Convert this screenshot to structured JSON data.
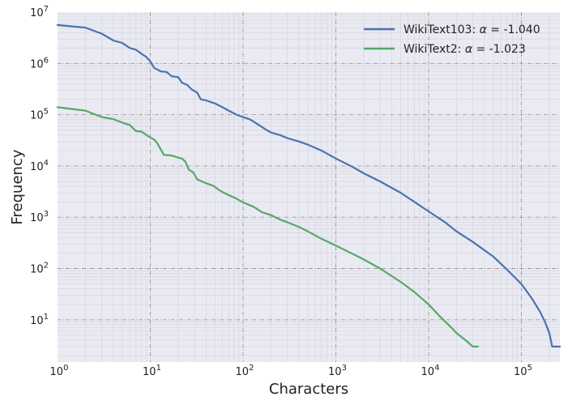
{
  "chart_data": {
    "type": "line",
    "xlabel": "Characters",
    "ylabel": "Frequency",
    "xscale": "log",
    "yscale": "log",
    "xlim": [
      1,
      260000
    ],
    "ylim": [
      1.5,
      10000000
    ],
    "grid": true,
    "legend_position": "top-right",
    "x_ticks": [
      {
        "value": 1,
        "base": "10",
        "exp": "0"
      },
      {
        "value": 10,
        "base": "10",
        "exp": "1"
      },
      {
        "value": 100,
        "base": "10",
        "exp": "2"
      },
      {
        "value": 1000,
        "base": "10",
        "exp": "3"
      },
      {
        "value": 10000,
        "base": "10",
        "exp": "4"
      },
      {
        "value": 100000,
        "base": "10",
        "exp": "5"
      }
    ],
    "y_ticks": [
      {
        "value": 10,
        "base": "10",
        "exp": "1"
      },
      {
        "value": 100,
        "base": "10",
        "exp": "2"
      },
      {
        "value": 1000,
        "base": "10",
        "exp": "3"
      },
      {
        "value": 10000,
        "base": "10",
        "exp": "4"
      },
      {
        "value": 100000,
        "base": "10",
        "exp": "5"
      },
      {
        "value": 1000000,
        "base": "10",
        "exp": "6"
      },
      {
        "value": 10000000,
        "base": "10",
        "exp": "7"
      }
    ],
    "series": [
      {
        "name": "WikiText103",
        "name_prefix": "WikiText103: ",
        "alpha_symbol": "α",
        "alpha_text": " = -1.040",
        "color": "#4c72b0",
        "points": [
          [
            1,
            5600000
          ],
          [
            2,
            5000000
          ],
          [
            3,
            3800000
          ],
          [
            4,
            2800000
          ],
          [
            5,
            2500000
          ],
          [
            6,
            2000000
          ],
          [
            7,
            1850000
          ],
          [
            8,
            1550000
          ],
          [
            9,
            1350000
          ],
          [
            10,
            1100000
          ],
          [
            11,
            820000
          ],
          [
            13,
            700000
          ],
          [
            15,
            680000
          ],
          [
            17,
            560000
          ],
          [
            20,
            540000
          ],
          [
            22,
            420000
          ],
          [
            25,
            380000
          ],
          [
            28,
            310000
          ],
          [
            32,
            270000
          ],
          [
            35,
            200000
          ],
          [
            40,
            190000
          ],
          [
            50,
            165000
          ],
          [
            60,
            140000
          ],
          [
            70,
            120000
          ],
          [
            85,
            100000
          ],
          [
            100,
            90000
          ],
          [
            120,
            80000
          ],
          [
            150,
            62000
          ],
          [
            180,
            50000
          ],
          [
            200,
            45000
          ],
          [
            250,
            40000
          ],
          [
            300,
            35000
          ],
          [
            400,
            30000
          ],
          [
            500,
            26000
          ],
          [
            700,
            20000
          ],
          [
            1000,
            14000
          ],
          [
            1500,
            9700
          ],
          [
            2000,
            7200
          ],
          [
            3000,
            5000
          ],
          [
            5000,
            3000
          ],
          [
            7000,
            2000
          ],
          [
            10000,
            1300
          ],
          [
            15000,
            800
          ],
          [
            20000,
            530
          ],
          [
            30000,
            330
          ],
          [
            50000,
            170
          ],
          [
            70000,
            95
          ],
          [
            100000,
            50
          ],
          [
            130000,
            26
          ],
          [
            160000,
            14
          ],
          [
            180000,
            9
          ],
          [
            200000,
            5.5
          ],
          [
            215000,
            3
          ],
          [
            260000,
            3
          ]
        ]
      },
      {
        "name": "WikiText2",
        "name_prefix": "WikiText2: ",
        "alpha_symbol": "α",
        "alpha_text": " = -1.023",
        "color": "#55a868",
        "points": [
          [
            1,
            140000
          ],
          [
            2,
            120000
          ],
          [
            3,
            90000
          ],
          [
            4,
            82000
          ],
          [
            5,
            70000
          ],
          [
            6,
            63000
          ],
          [
            7,
            48000
          ],
          [
            8,
            47000
          ],
          [
            10,
            36000
          ],
          [
            11,
            33000
          ],
          [
            12,
            27000
          ],
          [
            14,
            16500
          ],
          [
            17,
            16000
          ],
          [
            20,
            14500
          ],
          [
            22,
            14000
          ],
          [
            24,
            12000
          ],
          [
            26,
            8500
          ],
          [
            29,
            7500
          ],
          [
            32,
            5500
          ],
          [
            36,
            5000
          ],
          [
            40,
            4600
          ],
          [
            48,
            4100
          ],
          [
            55,
            3400
          ],
          [
            60,
            3100
          ],
          [
            70,
            2700
          ],
          [
            85,
            2300
          ],
          [
            100,
            1950
          ],
          [
            130,
            1600
          ],
          [
            160,
            1250
          ],
          [
            200,
            1100
          ],
          [
            250,
            900
          ],
          [
            300,
            800
          ],
          [
            400,
            650
          ],
          [
            500,
            530
          ],
          [
            700,
            380
          ],
          [
            1000,
            280
          ],
          [
            1500,
            195
          ],
          [
            2000,
            150
          ],
          [
            3000,
            100
          ],
          [
            5000,
            55
          ],
          [
            7000,
            35
          ],
          [
            10000,
            20
          ],
          [
            13000,
            12
          ],
          [
            17000,
            7.5
          ],
          [
            20000,
            5.5
          ],
          [
            25000,
            4
          ],
          [
            30000,
            3
          ],
          [
            34000,
            3
          ]
        ]
      }
    ]
  }
}
